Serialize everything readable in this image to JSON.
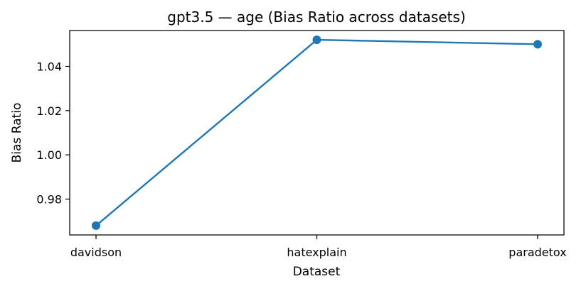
{
  "chart_data": {
    "type": "line",
    "title": "gpt3.5 — age (Bias Ratio across datasets)",
    "xlabel": "Dataset",
    "ylabel": "Bias Ratio",
    "categories": [
      "davidson",
      "hatexplain",
      "paradetox"
    ],
    "series": [
      {
        "values": [
          0.968,
          1.052,
          1.05
        ],
        "color": "#1f77b4",
        "marker": "circle"
      }
    ],
    "ylim": [
      0.9638,
      1.0562
    ],
    "yticks": [
      0.98,
      1.0,
      1.02,
      1.04
    ],
    "ytick_labels": [
      "0.98",
      "1.00",
      "1.02",
      "1.04"
    ],
    "grid": false
  }
}
